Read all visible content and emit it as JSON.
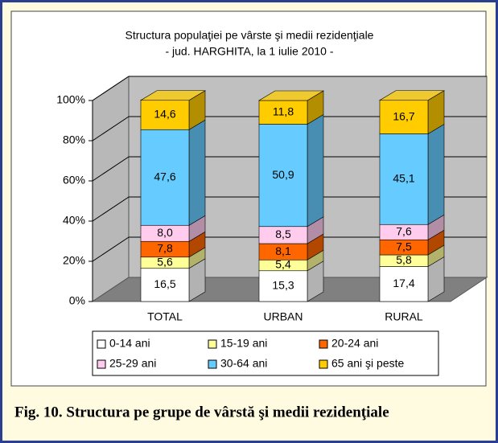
{
  "chart_data": {
    "type": "stacked_bar_3d",
    "title": "Structura populaţiei pe vârste şi medii rezidenţiale",
    "subtitle": "- jud. HARGHITA, la 1 iulie 2010 -",
    "categories": [
      "TOTAL",
      "URBAN",
      "RURAL"
    ],
    "series": [
      {
        "name": "0-14 ani",
        "color": "#ffffff",
        "values": [
          16.5,
          15.3,
          17.4
        ],
        "value_labels": [
          "16,5",
          "15,3",
          "17,4"
        ]
      },
      {
        "name": "15-19 ani",
        "color": "#ffff99",
        "values": [
          5.6,
          5.4,
          5.8
        ],
        "value_labels": [
          "5,6",
          "5,4",
          "5,8"
        ]
      },
      {
        "name": "20-24 ani",
        "color": "#ff6600",
        "values": [
          7.8,
          8.1,
          7.5
        ],
        "value_labels": [
          "7,8",
          "8,1",
          "7,5"
        ]
      },
      {
        "name": "25-29 ani",
        "color": "#ffccee",
        "values": [
          8.0,
          8.5,
          7.6
        ],
        "value_labels": [
          "8,0",
          "8,5",
          "7,6"
        ]
      },
      {
        "name": "30-64 ani",
        "color": "#66ccff",
        "values": [
          47.6,
          50.9,
          45.1
        ],
        "value_labels": [
          "47,6",
          "50,9",
          "45,1"
        ]
      },
      {
        "name": "65 ani şi peste",
        "color": "#ffcc00",
        "values": [
          14.6,
          11.8,
          16.7
        ],
        "value_labels": [
          "14,6",
          "11,8",
          "16,7"
        ]
      }
    ],
    "ylim": [
      0,
      100
    ],
    "yticks": [
      {
        "value": 0,
        "label": "0%"
      },
      {
        "value": 20,
        "label": "20%"
      },
      {
        "value": 40,
        "label": "40%"
      },
      {
        "value": 60,
        "label": "60%"
      },
      {
        "value": 80,
        "label": "80%"
      },
      {
        "value": 100,
        "label": "100%"
      }
    ],
    "grid": true
  },
  "caption": "Fig.  10. Structura pe grupe de vârstă şi medii rezidenţiale"
}
